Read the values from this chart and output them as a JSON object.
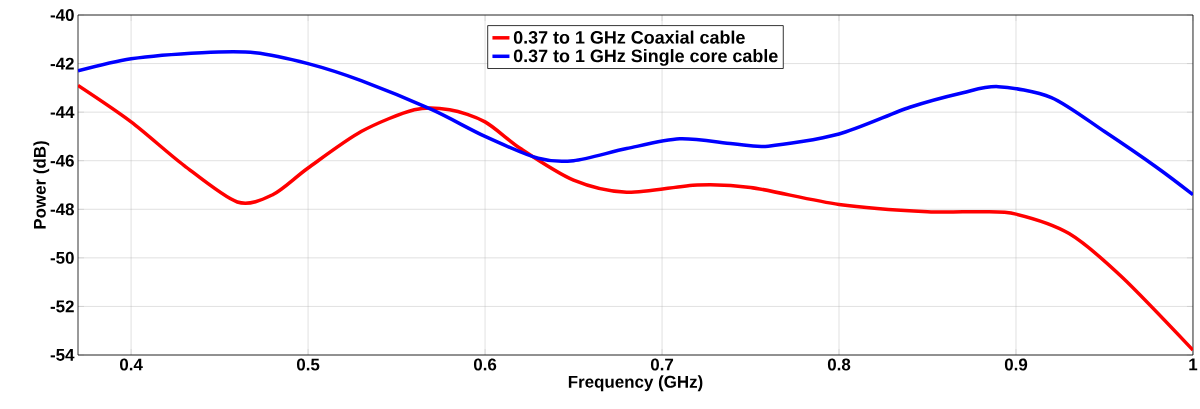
{
  "chart_data": {
    "type": "line",
    "xlabel": "Frequency (GHz)",
    "ylabel": "Power (dB)",
    "xlim": [
      0.37,
      1
    ],
    "ylim": [
      -54,
      -40
    ],
    "xticks": [
      0.4,
      0.5,
      0.6,
      0.7,
      0.8,
      0.9,
      1
    ],
    "yticks": [
      -54,
      -52,
      -50,
      -48,
      -46,
      -44,
      -42,
      -40
    ],
    "grid": true,
    "legend": "top",
    "line_style": "solid",
    "marker": "none",
    "series": [
      {
        "name": "0.37 to 1 GHz Coaxial cable",
        "color": "#ff0000",
        "x": [
          0.37,
          0.4,
          0.43,
          0.46,
          0.48,
          0.5,
          0.53,
          0.56,
          0.58,
          0.6,
          0.62,
          0.65,
          0.68,
          0.72,
          0.75,
          0.8,
          0.85,
          0.88,
          0.9,
          0.93,
          0.96,
          1.0
        ],
        "values": [
          -42.9,
          -44.4,
          -46.2,
          -47.7,
          -47.4,
          -46.3,
          -44.8,
          -43.9,
          -43.9,
          -44.4,
          -45.5,
          -46.8,
          -47.3,
          -47.0,
          -47.1,
          -47.8,
          -48.1,
          -48.1,
          -48.2,
          -49.0,
          -50.8,
          -53.8
        ]
      },
      {
        "name": "0.37 to 1 GHz Single core cable",
        "color": "#0000ff",
        "x": [
          0.37,
          0.4,
          0.44,
          0.47,
          0.5,
          0.53,
          0.57,
          0.6,
          0.63,
          0.65,
          0.68,
          0.71,
          0.74,
          0.76,
          0.8,
          0.84,
          0.87,
          0.89,
          0.92,
          0.95,
          0.98,
          1.0
        ],
        "values": [
          -42.3,
          -41.8,
          -41.55,
          -41.55,
          -42.0,
          -42.7,
          -43.9,
          -45.0,
          -45.9,
          -46.0,
          -45.5,
          -45.1,
          -45.3,
          -45.4,
          -44.9,
          -43.8,
          -43.2,
          -42.95,
          -43.4,
          -44.8,
          -46.3,
          -47.4
        ]
      }
    ]
  }
}
